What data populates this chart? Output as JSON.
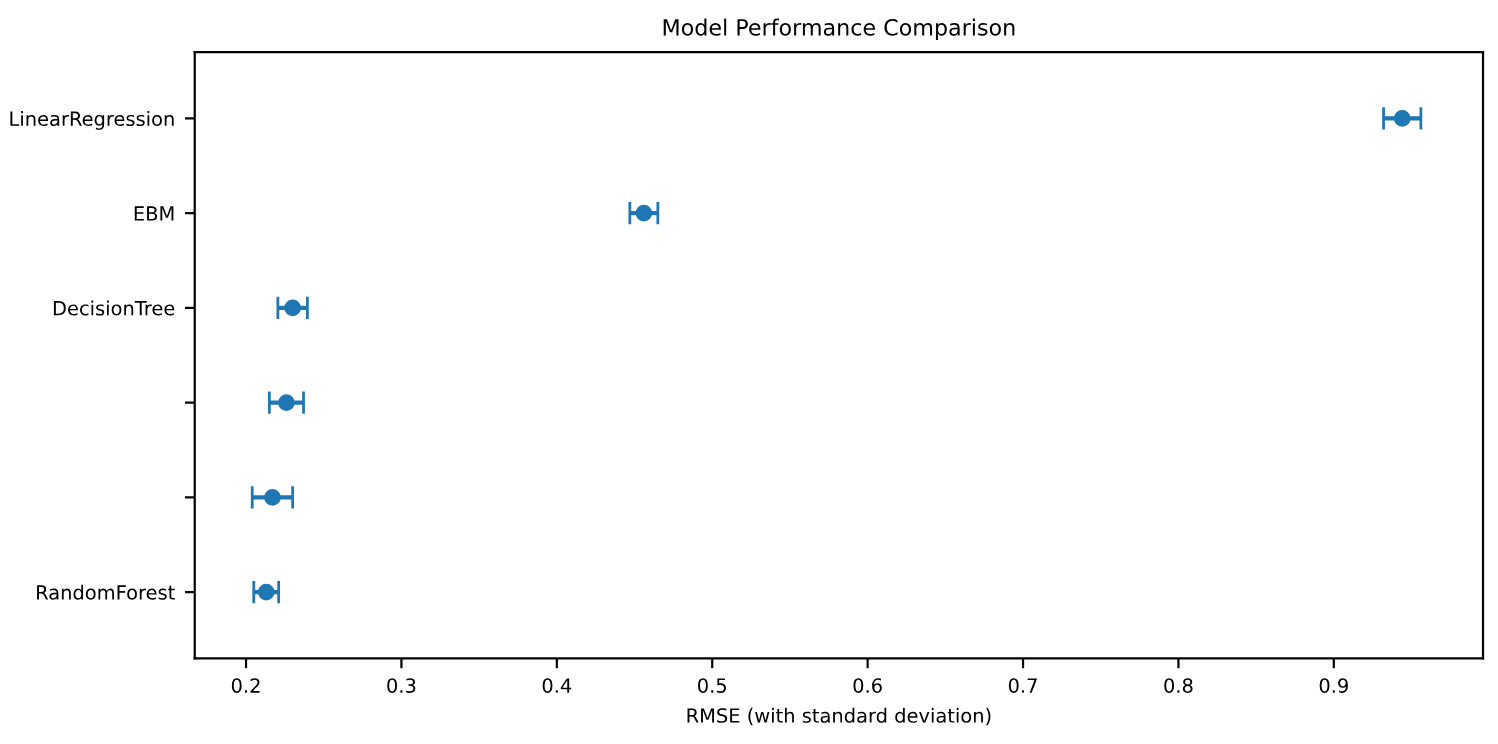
{
  "chart_data": {
    "type": "scatter",
    "orientation": "horizontal",
    "title": "Model Performance Comparison",
    "xlabel": "RMSE (with standard deviation)",
    "categories": [
      "LinearRegression",
      "EBM",
      "DecisionTree",
      null,
      null,
      "RandomForest"
    ],
    "values": [
      0.944,
      0.456,
      0.23,
      0.226,
      0.217,
      0.213
    ],
    "errors": [
      0.012,
      0.009,
      0.0095,
      0.011,
      0.013,
      0.008
    ],
    "color": "#1f77b4",
    "marker": "circle",
    "xlim": [
      0.167,
      0.996
    ],
    "xticks": [
      0.2,
      0.3,
      0.4,
      0.5,
      0.6,
      0.7,
      0.8,
      0.9
    ],
    "grid": false
  }
}
